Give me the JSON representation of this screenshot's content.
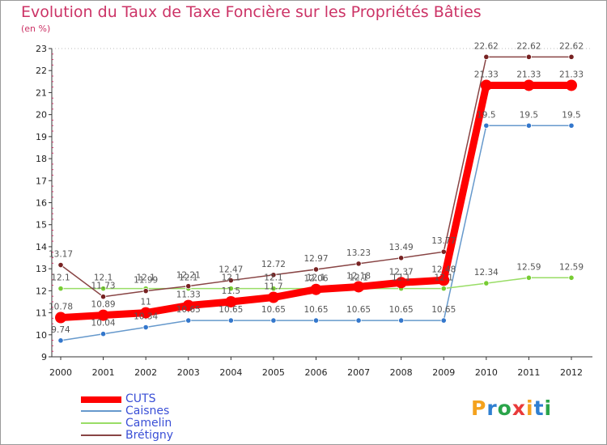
{
  "chart_data": {
    "type": "line",
    "title": "Evolution du Taux de Taxe Foncière sur les Propriétés Bâties",
    "subtitle": "(en %)",
    "xlabel": "",
    "ylabel": "",
    "ylim": [
      9,
      23
    ],
    "y_ticks": [
      "9",
      "10",
      "11",
      "12",
      "13",
      "14",
      "15",
      "16",
      "17",
      "18",
      "19",
      "20",
      "21",
      "22",
      "23"
    ],
    "grid": false,
    "legend_position": "bottom-left",
    "categories": [
      "2000",
      "2001",
      "2002",
      "2003",
      "2004",
      "2005",
      "2006",
      "2007",
      "2008",
      "2009",
      "2010",
      "2011",
      "2012"
    ],
    "series": [
      {
        "name": "CUTS",
        "color": "#ff0000",
        "marker": "#ff0000",
        "emphasis": true,
        "values": [
          10.78,
          10.89,
          11,
          11.33,
          11.5,
          11.7,
          12.06,
          12.18,
          12.37,
          12.48,
          21.33,
          21.33,
          21.33
        ],
        "labels": [
          "10.78",
          "10.89",
          "11",
          "11.33",
          "11.5",
          "11.7",
          "12.06",
          "12.18",
          "12.37",
          "12.48",
          "21.33",
          "21.33",
          "21.33"
        ]
      },
      {
        "name": "Caisnes",
        "color": "#6699cc",
        "marker": "#3377cc",
        "values": [
          9.74,
          10.04,
          10.34,
          10.65,
          10.65,
          10.65,
          10.65,
          10.65,
          10.65,
          10.65,
          19.5,
          19.5,
          19.5
        ],
        "labels": [
          "9.74",
          "10.04",
          "10.34",
          "10.65",
          "10.65",
          "10.65",
          "10.65",
          "10.65",
          "10.65",
          "10.65",
          "19.5",
          "19.5",
          "19.5"
        ]
      },
      {
        "name": "Camelin",
        "color": "#99dd66",
        "marker": "#77cc33",
        "values": [
          12.1,
          12.1,
          12.1,
          12.1,
          12.1,
          12.1,
          12.1,
          12.1,
          12.1,
          12.1,
          12.34,
          12.59,
          12.59
        ],
        "labels": [
          "12.1",
          "12.1",
          "12.1",
          "12.1",
          "12.1",
          "12.1",
          "12.1",
          "12.1",
          "12.1",
          "12.1",
          "12.34",
          "12.59",
          "12.59"
        ]
      },
      {
        "name": "Brétigny",
        "color": "#884444",
        "marker": "#772222",
        "values": [
          13.17,
          11.73,
          11.99,
          12.21,
          12.47,
          12.72,
          12.97,
          13.23,
          13.49,
          13.77,
          22.62,
          22.62,
          22.62
        ],
        "labels": [
          "13.17",
          "11.73",
          "11.99",
          "12.21",
          "12.47",
          "12.72",
          "12.97",
          "13.23",
          "13.49",
          "13.77",
          "22.62",
          "22.62",
          "22.62"
        ]
      }
    ]
  },
  "logo": {
    "letters": [
      "P",
      "r",
      "o",
      "x",
      "i",
      "t",
      "i"
    ],
    "colors": [
      "#f4a21e",
      "#2f7fd1",
      "#2aa44a",
      "#e93a3a",
      "#f4a21e",
      "#2f7fd1",
      "#2aa44a"
    ]
  }
}
